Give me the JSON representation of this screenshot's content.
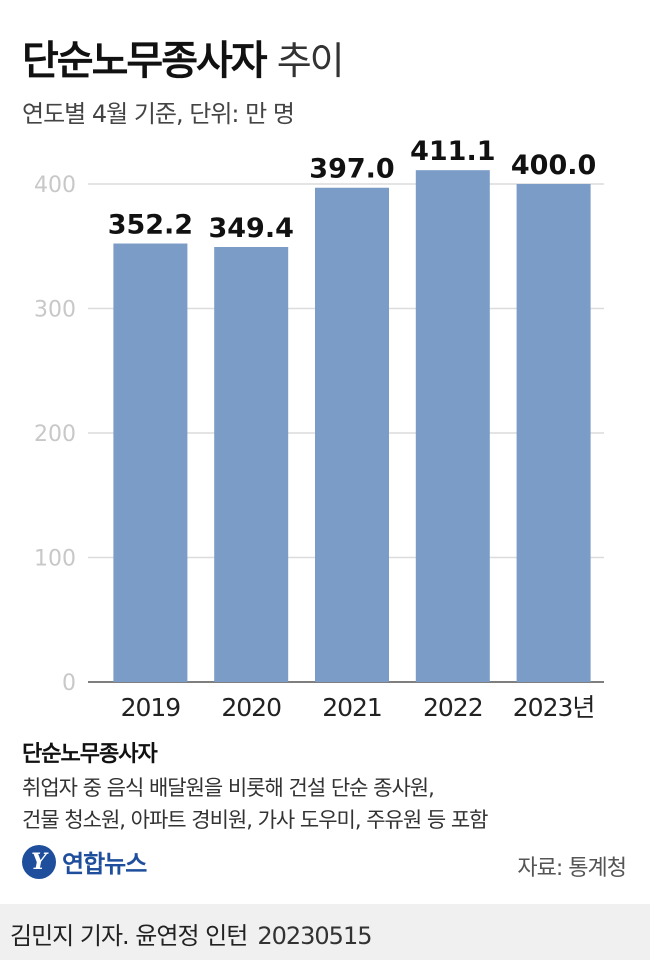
{
  "header": {
    "title_main": "단순노무종사자",
    "title_sub": "추이",
    "subtitle": "연도별 4월 기준, 단위: 만 명"
  },
  "chart_data": {
    "type": "bar",
    "categories": [
      "2019",
      "2020",
      "2021",
      "2022",
      "2023년"
    ],
    "values": [
      352.2,
      349.4,
      397.0,
      411.1,
      400.0
    ],
    "value_labels": [
      "352.2",
      "349.4",
      "397.0",
      "411.1",
      "400.0"
    ],
    "yticks": [
      "0",
      "100",
      "200",
      "300",
      "400"
    ],
    "ylim": [
      0,
      400
    ],
    "grid": true,
    "bar_color": "#7b9cc6",
    "grid_color": "#dcdcdc",
    "tick_color": "#c8c8c8"
  },
  "footnote": {
    "title": "단순노무종사자",
    "line1": "취업자 중 음식 배달원을 비롯해 건설 단순 종사원,",
    "line2": "건물 청소원, 아파트 경비원, 가사 도우미, 주유원 등 포함"
  },
  "logo": {
    "mark": "Y",
    "text": "연합뉴스"
  },
  "source": "자료: 통계청",
  "credit": {
    "text": "김민지 기자. 윤연정 인턴",
    "date": "20230515"
  }
}
